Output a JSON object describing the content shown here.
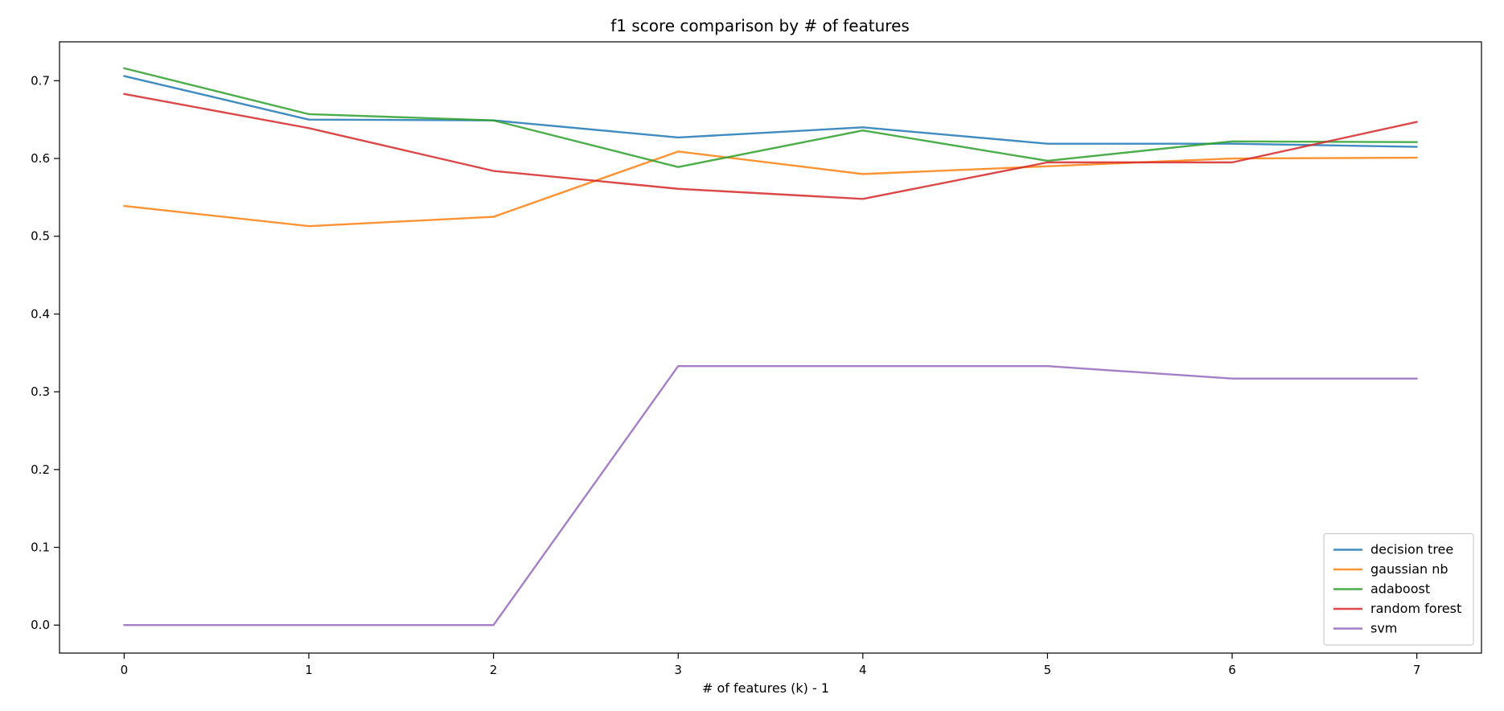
{
  "chart_data": {
    "type": "line",
    "title": "f1 score comparison by # of features",
    "xlabel": "# of features (k) - 1",
    "ylabel": "",
    "x": [
      0,
      1,
      2,
      3,
      4,
      5,
      6,
      7
    ],
    "xlim": [
      -0.35,
      7.35
    ],
    "ylim": [
      -0.036,
      0.75
    ],
    "xticks": [
      "0",
      "1",
      "2",
      "3",
      "4",
      "5",
      "6",
      "7"
    ],
    "yticks": [
      "0.0",
      "0.1",
      "0.2",
      "0.3",
      "0.4",
      "0.5",
      "0.6",
      "0.7"
    ],
    "grid": false,
    "legend_position": "lower right",
    "series": [
      {
        "name": "decision tree",
        "color": "#1f77b4",
        "values": [
          0.706,
          0.65,
          0.649,
          0.627,
          0.64,
          0.619,
          0.619,
          0.615
        ]
      },
      {
        "name": "gaussian nb",
        "color": "#ff7f0e",
        "values": [
          0.539,
          0.513,
          0.525,
          0.609,
          0.58,
          0.59,
          0.6,
          0.601
        ]
      },
      {
        "name": "adaboost",
        "color": "#2ca02c",
        "values": [
          0.716,
          0.657,
          0.649,
          0.589,
          0.636,
          0.597,
          0.622,
          0.621
        ]
      },
      {
        "name": "random forest",
        "color": "#d62728",
        "values": [
          0.683,
          0.639,
          0.584,
          0.561,
          0.548,
          0.595,
          0.595,
          0.647
        ]
      },
      {
        "name": "svm",
        "color": "#9467bd",
        "values": [
          0.0,
          0.0,
          0.0,
          0.333,
          0.333,
          0.333,
          0.317,
          0.317
        ]
      }
    ]
  }
}
